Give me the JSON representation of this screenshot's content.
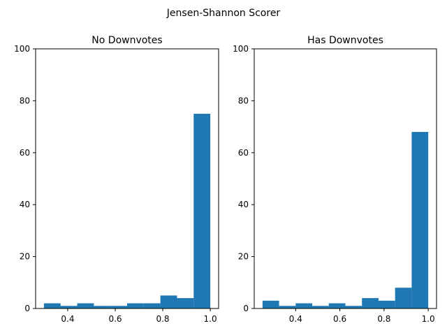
{
  "figure": {
    "title": "Jensen-Shannon Scorer"
  },
  "colors": {
    "bar": "#1f77b4",
    "axis": "#000000",
    "background": "#ffffff"
  },
  "chart_data": [
    {
      "type": "bar",
      "title": "No Downvotes",
      "xlabel": "",
      "ylabel": "",
      "xlim": [
        0.265,
        1.035
      ],
      "ylim": [
        0,
        100
      ],
      "xticks": [
        0.4,
        0.6,
        0.8,
        1.0
      ],
      "xtick_labels": [
        "0.4",
        "0.6",
        "0.8",
        "1.0"
      ],
      "yticks": [
        0,
        20,
        40,
        60,
        80,
        100
      ],
      "ytick_labels": [
        "0",
        "20",
        "40",
        "60",
        "80",
        "100"
      ],
      "bins": [
        {
          "x0": 0.3,
          "x1": 0.37,
          "value": 2
        },
        {
          "x0": 0.37,
          "x1": 0.44,
          "value": 1
        },
        {
          "x0": 0.44,
          "x1": 0.51,
          "value": 2
        },
        {
          "x0": 0.51,
          "x1": 0.58,
          "value": 1
        },
        {
          "x0": 0.58,
          "x1": 0.65,
          "value": 1
        },
        {
          "x0": 0.65,
          "x1": 0.72,
          "value": 2
        },
        {
          "x0": 0.72,
          "x1": 0.79,
          "value": 2
        },
        {
          "x0": 0.79,
          "x1": 0.86,
          "value": 5
        },
        {
          "x0": 0.86,
          "x1": 0.93,
          "value": 4
        },
        {
          "x0": 0.93,
          "x1": 1.0,
          "value": 75
        }
      ],
      "grid": false
    },
    {
      "type": "bar",
      "title": "Has Downvotes",
      "xlabel": "",
      "ylabel": "",
      "xlim": [
        0.2125,
        1.0375
      ],
      "ylim": [
        0,
        100
      ],
      "xticks": [
        0.4,
        0.6,
        0.8,
        1.0
      ],
      "xtick_labels": [
        "0.4",
        "0.6",
        "0.8",
        "1.0"
      ],
      "yticks": [
        0,
        20,
        40,
        60,
        80,
        100
      ],
      "ytick_labels": [
        "0",
        "20",
        "40",
        "60",
        "80",
        "100"
      ],
      "bins": [
        {
          "x0": 0.25,
          "x1": 0.325,
          "value": 3
        },
        {
          "x0": 0.325,
          "x1": 0.4,
          "value": 1
        },
        {
          "x0": 0.4,
          "x1": 0.475,
          "value": 2
        },
        {
          "x0": 0.475,
          "x1": 0.55,
          "value": 1
        },
        {
          "x0": 0.55,
          "x1": 0.625,
          "value": 2
        },
        {
          "x0": 0.625,
          "x1": 0.7,
          "value": 1
        },
        {
          "x0": 0.7,
          "x1": 0.775,
          "value": 4
        },
        {
          "x0": 0.775,
          "x1": 0.85,
          "value": 3
        },
        {
          "x0": 0.85,
          "x1": 0.925,
          "value": 8
        },
        {
          "x0": 0.925,
          "x1": 1.0,
          "value": 68
        }
      ],
      "grid": false
    }
  ]
}
